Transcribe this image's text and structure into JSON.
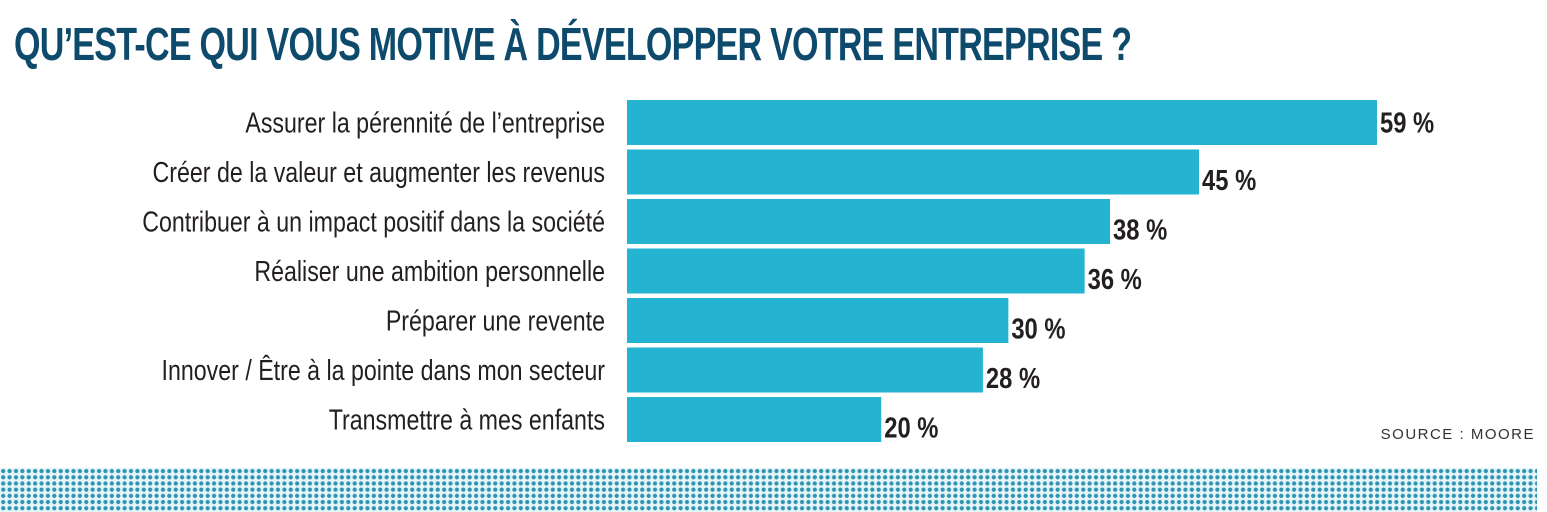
{
  "title": "QU’EST-CE QUI VOUS MOTIVE À DÉVELOPPER VOTRE ENTREPRISE ?",
  "source": "SOURCE : MOORE",
  "colors": {
    "bar": "#24b3d1",
    "title": "#0d4a6b",
    "text": "#231f20",
    "dots": "#2f93b3"
  },
  "chart_data": {
    "type": "bar",
    "orientation": "horizontal",
    "title": "QU’EST-CE QUI VOUS MOTIVE À DÉVELOPPER VOTRE ENTREPRISE ?",
    "xlabel": "",
    "ylabel": "",
    "unit": "%",
    "xlim": [
      0,
      59
    ],
    "grid": false,
    "categories": [
      "Assurer la pérennité de l’entreprise",
      "Créer de la valeur et augmenter les revenus",
      "Contribuer à un impact positif dans la société",
      "Réaliser une ambition personnelle",
      "Préparer une revente",
      "Innover / Être à la pointe dans mon secteur",
      "Transmettre à mes enfants"
    ],
    "values": [
      59,
      45,
      38,
      36,
      30,
      28,
      20
    ],
    "value_labels": [
      "59 %",
      "45 %",
      "38 %",
      "36 %",
      "30 %",
      "28 %",
      "20 %"
    ],
    "source": "SOURCE : MOORE"
  }
}
